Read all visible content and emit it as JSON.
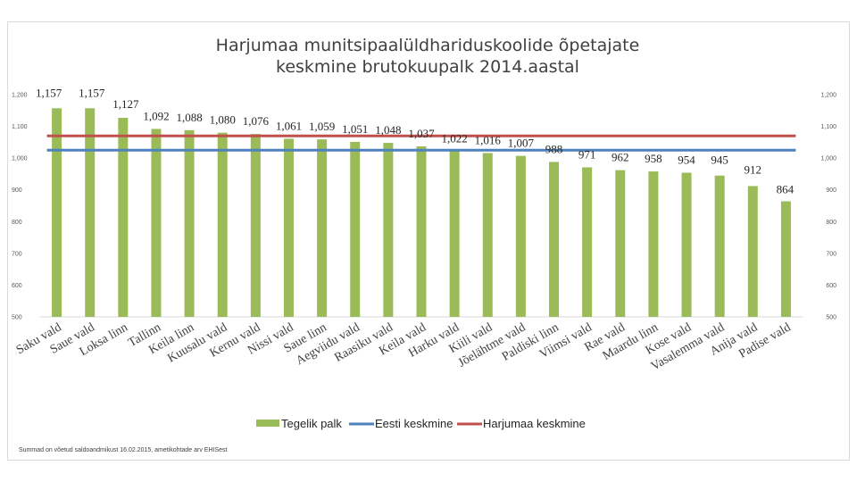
{
  "chart_data": {
    "type": "bar",
    "title_lines": [
      "Harjumaa munitsipaalüldhariduskoolide õpetajate",
      "keskmine brutokuupalk 2014.aastal"
    ],
    "categories": [
      "Saku vald",
      "Saue vald",
      "Loksa linn",
      "Tallinn",
      "Keila linn",
      "Kuusalu vald",
      "Kernu vald",
      "Nissi vald",
      "Saue linn",
      "Aegviidu vald",
      "Raasiku vald",
      "Keila vald",
      "Harku vald",
      "Kiili vald",
      "Jõelähtme vald",
      "Paldiski linn",
      "Viimsi vald",
      "Rae vald",
      "Maardu linn",
      "Kose vald",
      "Vasalemma vald",
      "Anija vald",
      "Padise vald"
    ],
    "series": [
      {
        "name": "Tegelik palk",
        "type": "bar",
        "color": "#9bbb59",
        "values": [
          1157,
          1157,
          1127,
          1092,
          1088,
          1080,
          1076,
          1061,
          1059,
          1051,
          1048,
          1037,
          1022,
          1016,
          1007,
          988,
          971,
          962,
          958,
          954,
          945,
          912,
          864
        ]
      },
      {
        "name": "Eesti keskmine",
        "type": "line",
        "color": "#4f81bd",
        "value": 1025
      },
      {
        "name": "Harjumaa keskmine",
        "type": "line",
        "color": "#c0504d",
        "value": 1070
      }
    ],
    "data_labels": [
      "1,157",
      "1,157",
      "1,127",
      "1,092",
      "1,088",
      "1,080",
      "1,076",
      "1,061",
      "1,059",
      "1,051",
      "1,048",
      "1,037",
      "1,022",
      "1,016",
      "1,007",
      "988",
      "971",
      "962",
      "958",
      "954",
      "945",
      "912",
      "864"
    ],
    "ylim": [
      500,
      1200
    ],
    "yticks": [
      500,
      600,
      700,
      800,
      900,
      1000,
      1100,
      1200
    ],
    "ytick_labels": [
      "500",
      "600",
      "700",
      "800",
      "900",
      "1,000",
      "1,100",
      "1,200"
    ],
    "secondary_axis": true,
    "legend_position": "bottom",
    "grid": false
  },
  "footnote": "Summad on võetud saldoandmikust 16.02.2015, ametikohtade arv EHISest"
}
